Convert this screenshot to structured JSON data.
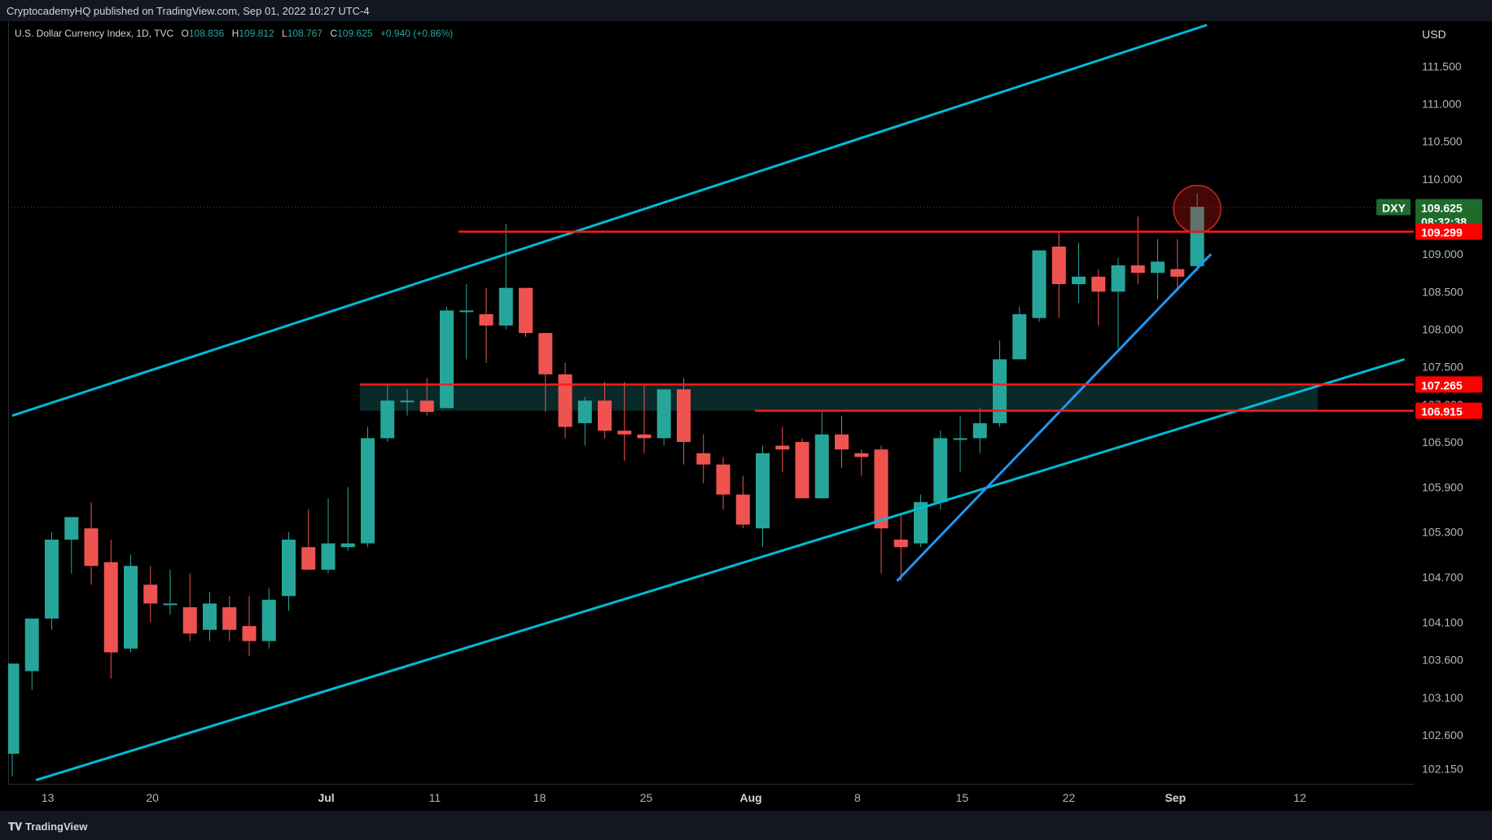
{
  "header": {
    "publisher": "CryptocademyHQ published on TradingView.com, Sep 01, 2022 10:27 UTC-4"
  },
  "legend": {
    "symbol_line": "U.S. Dollar Currency Index, 1D, TVC",
    "open_label": "O",
    "open": "108.836",
    "high_label": "H",
    "high": "109.812",
    "low_label": "L",
    "low": "108.767",
    "close_label": "C",
    "close": "109.625",
    "change": "+0.940 (+0.86%)"
  },
  "price_axis": {
    "currency": "USD",
    "ticks": [
      "111.500",
      "111.000",
      "110.500",
      "110.000",
      "109.000",
      "108.500",
      "108.000",
      "107.500",
      "106.500",
      "105.900",
      "105.300",
      "104.700",
      "104.100",
      "103.600",
      "103.100",
      "102.600",
      "102.150"
    ],
    "partial_tick": "107.000"
  },
  "badges": {
    "symbol": "DXY",
    "last_price": "109.625",
    "countdown": "08:32:38",
    "level_1": "109.299",
    "level_2": "107.265",
    "level_3": "106.915"
  },
  "time_axis": {
    "labels": [
      {
        "text": "13",
        "bold": false
      },
      {
        "text": "20",
        "bold": false
      },
      {
        "text": "Jul",
        "bold": true
      },
      {
        "text": "11",
        "bold": false
      },
      {
        "text": "18",
        "bold": false
      },
      {
        "text": "25",
        "bold": false
      },
      {
        "text": "Aug",
        "bold": true
      },
      {
        "text": "8",
        "bold": false
      },
      {
        "text": "15",
        "bold": false
      },
      {
        "text": "22",
        "bold": false
      },
      {
        "text": "Sep",
        "bold": true
      },
      {
        "text": "12",
        "bold": false
      }
    ]
  },
  "footer": {
    "brand": "TradingView"
  },
  "colors": {
    "up": "#26a69a",
    "down": "#ef5350",
    "channel": "#00bcd4",
    "trendline": "#2196f3",
    "level": "#ff1a1a",
    "zone": "#0b2b2b",
    "background": "#000000"
  },
  "chart_data": {
    "type": "candlestick",
    "title": "U.S. Dollar Currency Index, 1D, TVC",
    "ylabel": "USD",
    "ylim": [
      101.95,
      112.1
    ],
    "candles": [
      {
        "o": 102.35,
        "h": 103.55,
        "l": 102.05,
        "c": 103.55
      },
      {
        "o": 103.45,
        "h": 104.15,
        "l": 103.2,
        "c": 104.15
      },
      {
        "o": 104.15,
        "h": 105.3,
        "l": 104.0,
        "c": 105.2
      },
      {
        "o": 105.2,
        "h": 105.45,
        "l": 104.75,
        "c": 105.5
      },
      {
        "o": 105.35,
        "h": 105.7,
        "l": 104.6,
        "c": 104.85
      },
      {
        "o": 104.9,
        "h": 105.2,
        "l": 103.35,
        "c": 103.7
      },
      {
        "o": 103.75,
        "h": 105.0,
        "l": 103.7,
        "c": 104.85
      },
      {
        "o": 104.6,
        "h": 104.85,
        "l": 104.1,
        "c": 104.35
      },
      {
        "o": 104.35,
        "h": 104.8,
        "l": 104.2,
        "c": 104.35
      },
      {
        "o": 104.3,
        "h": 104.75,
        "l": 103.85,
        "c": 103.95
      },
      {
        "o": 104.0,
        "h": 104.5,
        "l": 103.85,
        "c": 104.35
      },
      {
        "o": 104.3,
        "h": 104.45,
        "l": 103.85,
        "c": 104.0
      },
      {
        "o": 104.05,
        "h": 104.45,
        "l": 103.65,
        "c": 103.85
      },
      {
        "o": 103.85,
        "h": 104.55,
        "l": 103.75,
        "c": 104.4
      },
      {
        "o": 104.45,
        "h": 105.3,
        "l": 104.25,
        "c": 105.2
      },
      {
        "o": 105.1,
        "h": 105.6,
        "l": 104.8,
        "c": 104.8
      },
      {
        "o": 104.8,
        "h": 105.75,
        "l": 104.75,
        "c": 105.15
      },
      {
        "o": 105.1,
        "h": 105.9,
        "l": 105.05,
        "c": 105.15
      },
      {
        "o": 105.15,
        "h": 106.7,
        "l": 105.1,
        "c": 106.55
      },
      {
        "o": 106.55,
        "h": 107.25,
        "l": 106.5,
        "c": 107.05
      },
      {
        "o": 107.05,
        "h": 107.2,
        "l": 106.85,
        "c": 107.05
      },
      {
        "o": 107.05,
        "h": 107.35,
        "l": 106.85,
        "c": 106.9
      },
      {
        "o": 106.95,
        "h": 108.3,
        "l": 106.95,
        "c": 108.25
      },
      {
        "o": 108.25,
        "h": 108.6,
        "l": 107.6,
        "c": 108.25
      },
      {
        "o": 108.2,
        "h": 108.55,
        "l": 107.55,
        "c": 108.05
      },
      {
        "o": 108.05,
        "h": 109.4,
        "l": 108.0,
        "c": 108.55
      },
      {
        "o": 108.55,
        "h": 108.55,
        "l": 107.9,
        "c": 107.95
      },
      {
        "o": 107.95,
        "h": 107.95,
        "l": 106.9,
        "c": 107.4
      },
      {
        "o": 107.4,
        "h": 107.55,
        "l": 106.55,
        "c": 106.7
      },
      {
        "o": 106.75,
        "h": 107.1,
        "l": 106.45,
        "c": 107.05
      },
      {
        "o": 107.05,
        "h": 107.3,
        "l": 106.55,
        "c": 106.65
      },
      {
        "o": 106.65,
        "h": 107.3,
        "l": 106.25,
        "c": 106.6
      },
      {
        "o": 106.6,
        "h": 107.25,
        "l": 106.35,
        "c": 106.55
      },
      {
        "o": 106.55,
        "h": 107.2,
        "l": 106.45,
        "c": 107.2
      },
      {
        "o": 107.2,
        "h": 107.35,
        "l": 106.2,
        "c": 106.5
      },
      {
        "o": 106.35,
        "h": 106.6,
        "l": 105.95,
        "c": 106.2
      },
      {
        "o": 106.2,
        "h": 106.3,
        "l": 105.6,
        "c": 105.8
      },
      {
        "o": 105.8,
        "h": 106.05,
        "l": 105.35,
        "c": 105.4
      },
      {
        "o": 105.35,
        "h": 106.45,
        "l": 105.1,
        "c": 106.35
      },
      {
        "o": 106.45,
        "h": 106.7,
        "l": 106.1,
        "c": 106.4
      },
      {
        "o": 106.5,
        "h": 106.55,
        "l": 105.75,
        "c": 105.75
      },
      {
        "o": 105.75,
        "h": 106.9,
        "l": 105.75,
        "c": 106.6
      },
      {
        "o": 106.6,
        "h": 106.85,
        "l": 106.15,
        "c": 106.4
      },
      {
        "o": 106.35,
        "h": 106.4,
        "l": 106.05,
        "c": 106.3
      },
      {
        "o": 106.4,
        "h": 106.45,
        "l": 104.75,
        "c": 105.35
      },
      {
        "o": 105.2,
        "h": 105.55,
        "l": 104.65,
        "c": 105.1
      },
      {
        "o": 105.15,
        "h": 105.8,
        "l": 105.1,
        "c": 105.7
      },
      {
        "o": 105.7,
        "h": 106.65,
        "l": 105.6,
        "c": 106.55
      },
      {
        "o": 106.55,
        "h": 106.85,
        "l": 106.1,
        "c": 106.55
      },
      {
        "o": 106.55,
        "h": 106.95,
        "l": 106.35,
        "c": 106.75
      },
      {
        "o": 106.75,
        "h": 107.85,
        "l": 106.7,
        "c": 107.6
      },
      {
        "o": 107.6,
        "h": 108.3,
        "l": 107.6,
        "c": 108.2
      },
      {
        "o": 108.15,
        "h": 109.05,
        "l": 108.1,
        "c": 109.05
      },
      {
        "o": 109.1,
        "h": 109.3,
        "l": 108.15,
        "c": 108.6
      },
      {
        "o": 108.6,
        "h": 109.15,
        "l": 108.35,
        "c": 108.7
      },
      {
        "o": 108.7,
        "h": 108.8,
        "l": 108.05,
        "c": 108.5
      },
      {
        "o": 108.5,
        "h": 108.95,
        "l": 107.75,
        "c": 108.85
      },
      {
        "o": 108.85,
        "h": 109.5,
        "l": 108.6,
        "c": 108.75
      },
      {
        "o": 108.75,
        "h": 109.2,
        "l": 108.4,
        "c": 108.9
      },
      {
        "o": 108.8,
        "h": 109.2,
        "l": 108.5,
        "c": 108.7
      },
      {
        "o": 108.84,
        "h": 109.81,
        "l": 108.77,
        "c": 109.63
      }
    ],
    "lines": [
      {
        "name": "channel-upper",
        "color": "#00bcd4",
        "from": [
          0,
          106.85
        ],
        "to": [
          60.5,
          112.05
        ]
      },
      {
        "name": "channel-lower",
        "color": "#00bcd4",
        "from": [
          1.2,
          102.0
        ],
        "to": [
          70.5,
          107.6
        ]
      },
      {
        "name": "rising-trendline",
        "color": "#2196f3",
        "from": [
          44.8,
          104.65
        ],
        "to": [
          60.7,
          109.0
        ]
      },
      {
        "name": "resistance-109.299",
        "color": "#ff1a1a",
        "from": [
          22.6,
          109.299
        ],
        "to": [
          75,
          109.299
        ]
      },
      {
        "name": "support-107.265",
        "color": "#ff1a1a",
        "from": [
          17.6,
          107.265
        ],
        "to": [
          75,
          107.265
        ]
      },
      {
        "name": "support-106.915",
        "color": "#ff1a1a",
        "from": [
          37.6,
          106.915
        ],
        "to": [
          75,
          106.915
        ]
      }
    ],
    "zone": {
      "from_index": 17.6,
      "to_index": 66.1,
      "low": 106.915,
      "high": 107.265
    },
    "highlight_circle": {
      "index": 60,
      "price": 109.6
    },
    "last_price": 109.625
  }
}
